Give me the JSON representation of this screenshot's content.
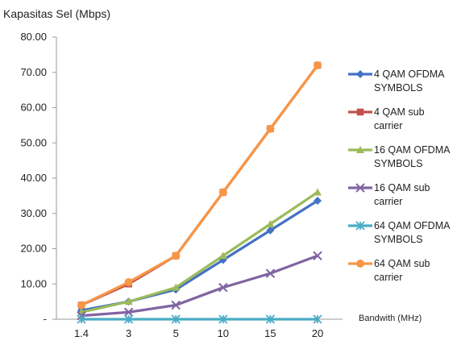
{
  "chart_data": {
    "type": "line",
    "ylabel": "Kapasitas Sel (Mbps)",
    "xlabel": "Bandwith (MHz)",
    "categories": [
      "1.4",
      "3",
      "5",
      "10",
      "15",
      "20"
    ],
    "ylim": [
      0,
      80
    ],
    "yticks": [
      "-",
      "10.00",
      "20.00",
      "30.00",
      "40.00",
      "50.00",
      "60.00",
      "70.00",
      "80.00"
    ],
    "grid": false,
    "legend_position": "right",
    "series": [
      {
        "name": "4 QAM OFDMA SYMBOLS",
        "color": "#4472C4",
        "marker": "diamond",
        "values": [
          2.5,
          5.0,
          8.4,
          16.8,
          25.2,
          33.6
        ]
      },
      {
        "name": "4 QAM sub carrier",
        "color": "#C0504D",
        "marker": "square",
        "values": [
          4.0,
          10.0,
          18.0,
          36.0,
          54.0,
          72.0
        ]
      },
      {
        "name": "16 QAM OFDMA SYMBOLS",
        "color": "#9BBB59",
        "marker": "triangle",
        "values": [
          2.0,
          5.0,
          9.0,
          18.0,
          27.0,
          36.0
        ]
      },
      {
        "name": "16 QAM sub carrier",
        "color": "#8064A2",
        "marker": "x",
        "values": [
          1.0,
          2.0,
          4.0,
          9.0,
          13.0,
          18.0
        ]
      },
      {
        "name": "64 QAM OFDMA SYMBOLS",
        "color": "#4BACC6",
        "marker": "star",
        "values": [
          0.0,
          0.0,
          0.0,
          0.0,
          0.0,
          0.0
        ]
      },
      {
        "name": "64 QAM sub carrier",
        "color": "#F79646",
        "marker": "circle",
        "values": [
          4.0,
          10.5,
          18.0,
          36.0,
          54.0,
          72.0
        ]
      }
    ]
  }
}
